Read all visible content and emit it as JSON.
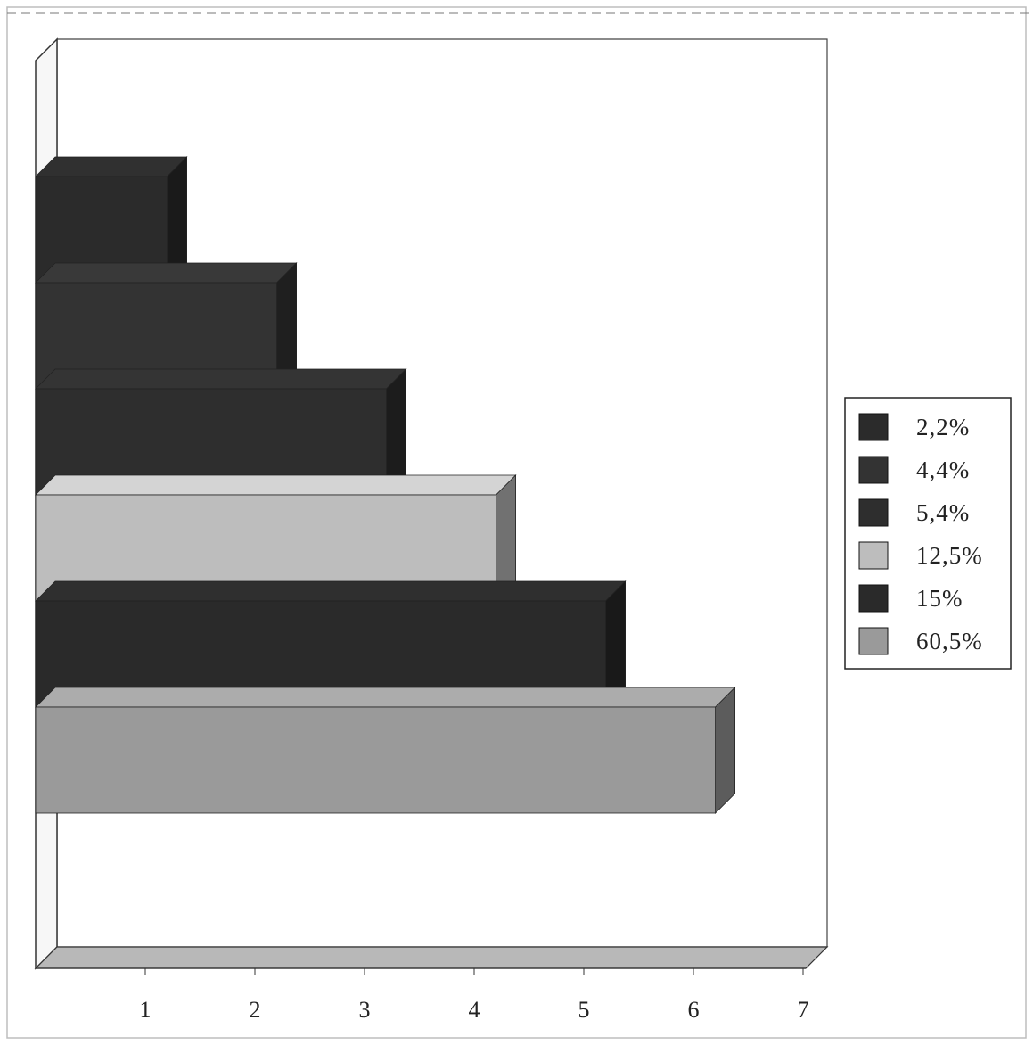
{
  "chart_data": {
    "type": "bar",
    "orientation": "horizontal",
    "style": "3d",
    "x_ticks": [
      "1",
      "2",
      "3",
      "4",
      "5",
      "6",
      "7"
    ],
    "xlim": [
      0,
      7
    ],
    "series": [
      {
        "name": "2,2%",
        "value": 1.2,
        "color": "#2b2b2b"
      },
      {
        "name": "4,4%",
        "value": 2.2,
        "color": "#333333"
      },
      {
        "name": "5,4%",
        "value": 3.2,
        "color": "#2e2e2e"
      },
      {
        "name": "12,5%",
        "value": 4.2,
        "color": "#bdbdbd"
      },
      {
        "name": "15%",
        "value": 5.2,
        "color": "#2a2a2a"
      },
      {
        "name": "60,5%",
        "value": 6.2,
        "color": "#9a9a9a"
      }
    ],
    "legend_position": "right",
    "grid": false
  }
}
